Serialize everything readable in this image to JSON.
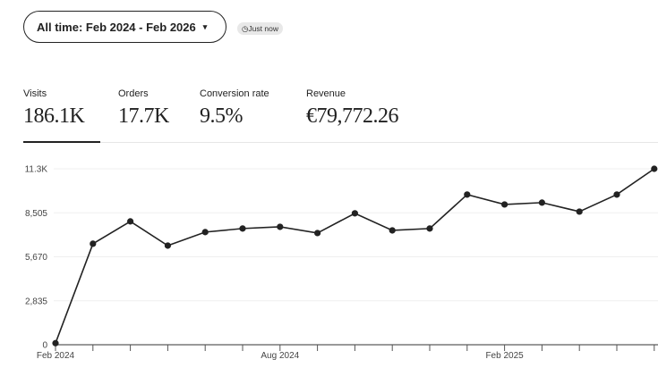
{
  "header": {
    "range_label": "All time: Feb 2024 - Feb 2026",
    "range_caret": "▾",
    "updated_badge": "◷Just now"
  },
  "metrics": [
    {
      "label": "Visits",
      "value": "186.1K",
      "active": true
    },
    {
      "label": "Orders",
      "value": "17.7K"
    },
    {
      "label": "Conversion rate",
      "value": "9.5%"
    },
    {
      "label": "Revenue",
      "value": "€79,772.26"
    }
  ],
  "chart_data": {
    "type": "line",
    "title": "",
    "xlabel": "",
    "ylabel": "",
    "x": [
      "2024-02",
      "2024-03",
      "2024-04",
      "2024-05",
      "2024-06",
      "2024-07",
      "2024-08",
      "2024-09",
      "2024-10",
      "2024-11",
      "2024-12",
      "2025-01",
      "2025-02",
      "2025-03",
      "2025-04",
      "2025-05",
      "2025-06"
    ],
    "series": [
      {
        "values": [
          100,
          6510,
          7950,
          6390,
          7260,
          7490,
          7600,
          7200,
          8470,
          7370,
          7490,
          9680,
          9040,
          9160,
          8580,
          9680,
          11340
        ]
      }
    ],
    "ylim": [
      0,
      11340
    ],
    "yticks": [
      {
        "value": 0,
        "label": "0"
      },
      {
        "value": 2835,
        "label": "2,835"
      },
      {
        "value": 5670,
        "label": "5,670"
      },
      {
        "value": 8505,
        "label": "8,505"
      },
      {
        "value": 11340,
        "label": "11.3K"
      }
    ],
    "xticklabels": [
      {
        "index": 0,
        "label": "Feb 2024"
      },
      {
        "index": 6,
        "label": "Aug 2024"
      },
      {
        "index": 12,
        "label": "Feb 2025"
      }
    ],
    "grid": true,
    "line_color": "#222222"
  }
}
